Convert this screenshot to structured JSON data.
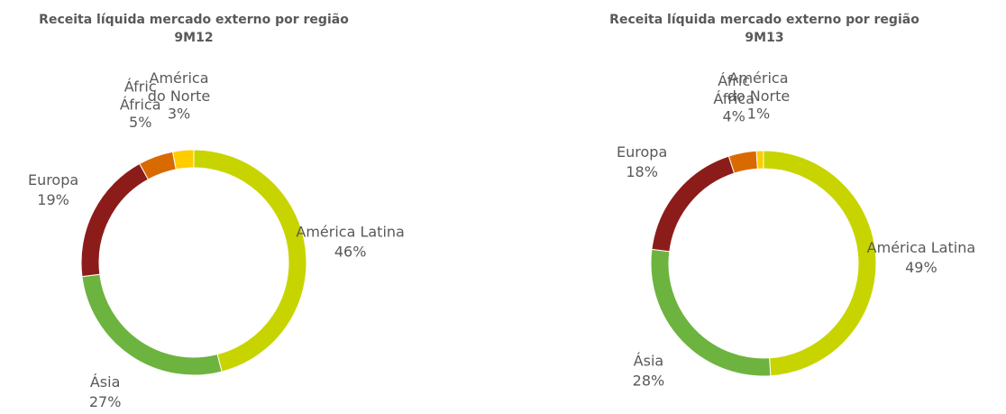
{
  "chart_data": [
    {
      "type": "pie",
      "title": "Receita líquida mercado externo por região",
      "subtitle": "9M12",
      "categories": [
        "América Latina",
        "Ásia",
        "Europa",
        "África",
        "América do Norte"
      ],
      "values": [
        46,
        27,
        19,
        5,
        3
      ],
      "value_labels": [
        "46%",
        "27%",
        "19%",
        "5%",
        "3%"
      ],
      "colors": [
        "#c8d400",
        "#6db33f",
        "#8c1c1a",
        "#d96a00",
        "#ffcc00"
      ]
    },
    {
      "type": "pie",
      "title": "Receita líquida mercado externo por região",
      "subtitle": "9M13",
      "categories": [
        "América Latina",
        "Ásia",
        "Europa",
        "África",
        "América do Norte"
      ],
      "values": [
        49,
        28,
        18,
        4,
        1
      ],
      "value_labels": [
        "49%",
        "28%",
        "18%",
        "4%",
        "1%"
      ],
      "colors": [
        "#c8d400",
        "#6db33f",
        "#8c1c1a",
        "#d96a00",
        "#ffcc00"
      ]
    }
  ]
}
